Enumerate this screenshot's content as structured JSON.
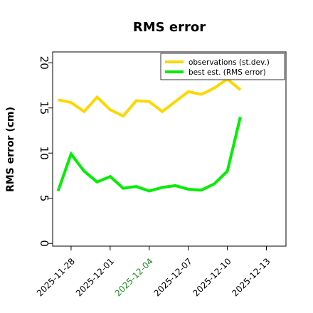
{
  "chart_data": {
    "type": "line",
    "title": "RMS error",
    "xlabel": "",
    "ylabel": "RMS error (cm)",
    "ylim": [
      -0.3,
      21.2
    ],
    "yticks": [
      0,
      5,
      10,
      15,
      20
    ],
    "xlim": [
      "2025-11-26T14:00",
      "2025-12-14T12:00"
    ],
    "xticks": [
      {
        "label": "2025-11-28",
        "color": "#000000"
      },
      {
        "label": "2025-12-01",
        "color": "#000000"
      },
      {
        "label": "2025-12-04",
        "color": "#228B22"
      },
      {
        "label": "2025-12-07",
        "color": "#000000"
      },
      {
        "label": "2025-12-10",
        "color": "#000000"
      },
      {
        "label": "2025-12-13",
        "color": "#000000"
      }
    ],
    "grid": false,
    "legend_position": "top-right",
    "series": [
      {
        "name": "observations (st.dev.)",
        "color": "#FFD700",
        "x": [
          "2025-11-27",
          "2025-11-28",
          "2025-11-29",
          "2025-11-30",
          "2025-12-01",
          "2025-12-02",
          "2025-12-03",
          "2025-12-04",
          "2025-12-05",
          "2025-12-06",
          "2025-12-07",
          "2025-12-08",
          "2025-12-09",
          "2025-12-10",
          "2025-12-11"
        ],
        "values": [
          15.9,
          15.6,
          14.6,
          16.2,
          14.8,
          14.1,
          15.8,
          15.7,
          14.6,
          15.7,
          16.8,
          16.5,
          17.2,
          18.2,
          17.0
        ]
      },
      {
        "name": "best est. (RMS error)",
        "color": "#00EE00",
        "x": [
          "2025-11-27",
          "2025-11-28",
          "2025-11-29",
          "2025-11-30",
          "2025-12-01",
          "2025-12-02",
          "2025-12-03",
          "2025-12-04",
          "2025-12-05",
          "2025-12-06",
          "2025-12-07",
          "2025-12-08",
          "2025-12-09",
          "2025-12-10",
          "2025-12-11"
        ],
        "values": [
          5.8,
          9.9,
          8.0,
          6.8,
          7.4,
          6.1,
          6.3,
          5.8,
          6.2,
          6.4,
          6.0,
          5.9,
          6.6,
          8.0,
          14.0
        ]
      }
    ]
  }
}
